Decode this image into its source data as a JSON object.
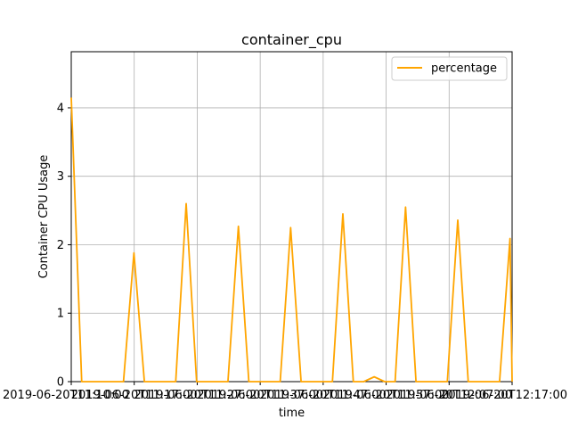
{
  "chart_data": {
    "type": "line",
    "title": "container_cpu",
    "xlabel": "time",
    "ylabel": "Container CPU Usage",
    "ylim": [
      0,
      4.82
    ],
    "yticks": [
      0,
      1,
      2,
      3,
      4
    ],
    "xticks": [
      "2019-06-20T11:10:00",
      "2019-06-20T11:17:00",
      "2019-06-20T11:27:00",
      "2019-06-20T11:37:00",
      "2019-06-20T11:47:00",
      "2019-06-20T11:57:00",
      "2019-06-20T12:07:00",
      "2019-06-20T12:17:00"
    ],
    "grid": true,
    "legend_position": "top-right",
    "series": [
      {
        "name": "percentage",
        "color": "#ffa500",
        "points": [
          [
            0,
            4.15
          ],
          [
            1,
            0
          ],
          [
            5,
            0
          ],
          [
            6,
            1.88
          ],
          [
            7,
            0
          ],
          [
            10,
            0
          ],
          [
            11,
            2.6
          ],
          [
            12,
            0
          ],
          [
            15,
            0
          ],
          [
            16,
            2.27
          ],
          [
            17,
            0
          ],
          [
            20,
            0
          ],
          [
            21,
            2.25
          ],
          [
            22,
            0
          ],
          [
            25,
            0
          ],
          [
            26,
            2.45
          ],
          [
            27,
            0
          ],
          [
            28,
            0
          ],
          [
            29,
            0.07
          ],
          [
            30,
            0
          ],
          [
            31,
            0
          ],
          [
            32,
            2.55
          ],
          [
            33,
            0
          ],
          [
            36,
            0
          ],
          [
            37,
            2.36
          ],
          [
            38,
            0
          ],
          [
            41,
            0
          ],
          [
            42,
            2.09
          ],
          [
            42.2,
            0
          ]
        ]
      }
    ],
    "x_index_range": [
      0,
      42.2
    ]
  }
}
